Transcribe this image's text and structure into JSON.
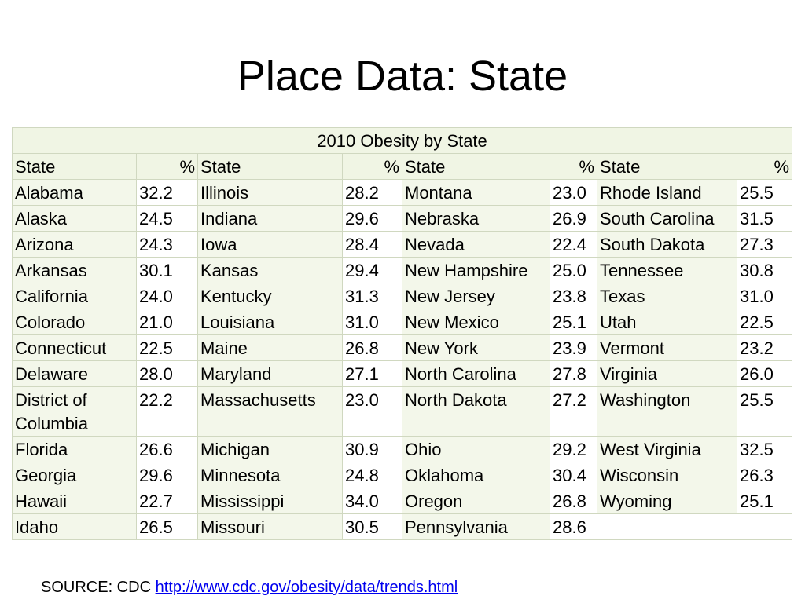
{
  "header": {
    "title": "Place Data: State"
  },
  "table": {
    "caption": "2010 Obesity by State",
    "columns": [
      "State",
      "%",
      "State",
      "%",
      "State",
      "%",
      "State",
      "%"
    ],
    "rows": [
      [
        "Alabama",
        "32.2",
        "Illinois",
        "28.2",
        "Montana",
        "23.0",
        "Rhode Island",
        "25.5"
      ],
      [
        "Alaska",
        "24.5",
        "Indiana",
        "29.6",
        "Nebraska",
        "26.9",
        "South Carolina",
        "31.5"
      ],
      [
        "Arizona",
        "24.3",
        "Iowa",
        "28.4",
        "Nevada",
        "22.4",
        "South Dakota",
        "27.3"
      ],
      [
        "Arkansas",
        "30.1",
        "Kansas",
        "29.4",
        "New Hampshire",
        "25.0",
        "Tennessee",
        "30.8"
      ],
      [
        "California",
        "24.0",
        "Kentucky",
        "31.3",
        "New Jersey",
        "23.8",
        "Texas",
        "31.0"
      ],
      [
        "Colorado",
        "21.0",
        "Louisiana",
        "31.0",
        "New Mexico",
        "25.1",
        "Utah",
        "22.5"
      ],
      [
        "Connecticut",
        "22.5",
        "Maine",
        "26.8",
        "New York",
        "23.9",
        "Vermont",
        "23.2"
      ],
      [
        "Delaware",
        "28.0",
        "Maryland",
        "27.1",
        "North Carolina",
        "27.8",
        "Virginia",
        "26.0"
      ],
      [
        "District of Columbia",
        "22.2",
        "Massachusetts",
        "23.0",
        "North Dakota",
        "27.2",
        "Washington",
        "25.5"
      ],
      [
        "Florida",
        "26.6",
        "Michigan",
        "30.9",
        "Ohio",
        "29.2",
        "West Virginia",
        "32.5"
      ],
      [
        "Georgia",
        "29.6",
        "Minnesota",
        "24.8",
        "Oklahoma",
        "30.4",
        "Wisconsin",
        "26.3"
      ],
      [
        "Hawaii",
        "22.7",
        "Mississippi",
        "34.0",
        "Oregon",
        "26.8",
        "Wyoming",
        "25.1"
      ],
      [
        "Idaho",
        "26.5",
        "Missouri",
        "30.5",
        "Pennsylvania",
        "28.6"
      ]
    ]
  },
  "source": {
    "label": "SOURCE: CDC",
    "link": "http://www.cdc.gov/obesity/data/trends.html"
  }
}
